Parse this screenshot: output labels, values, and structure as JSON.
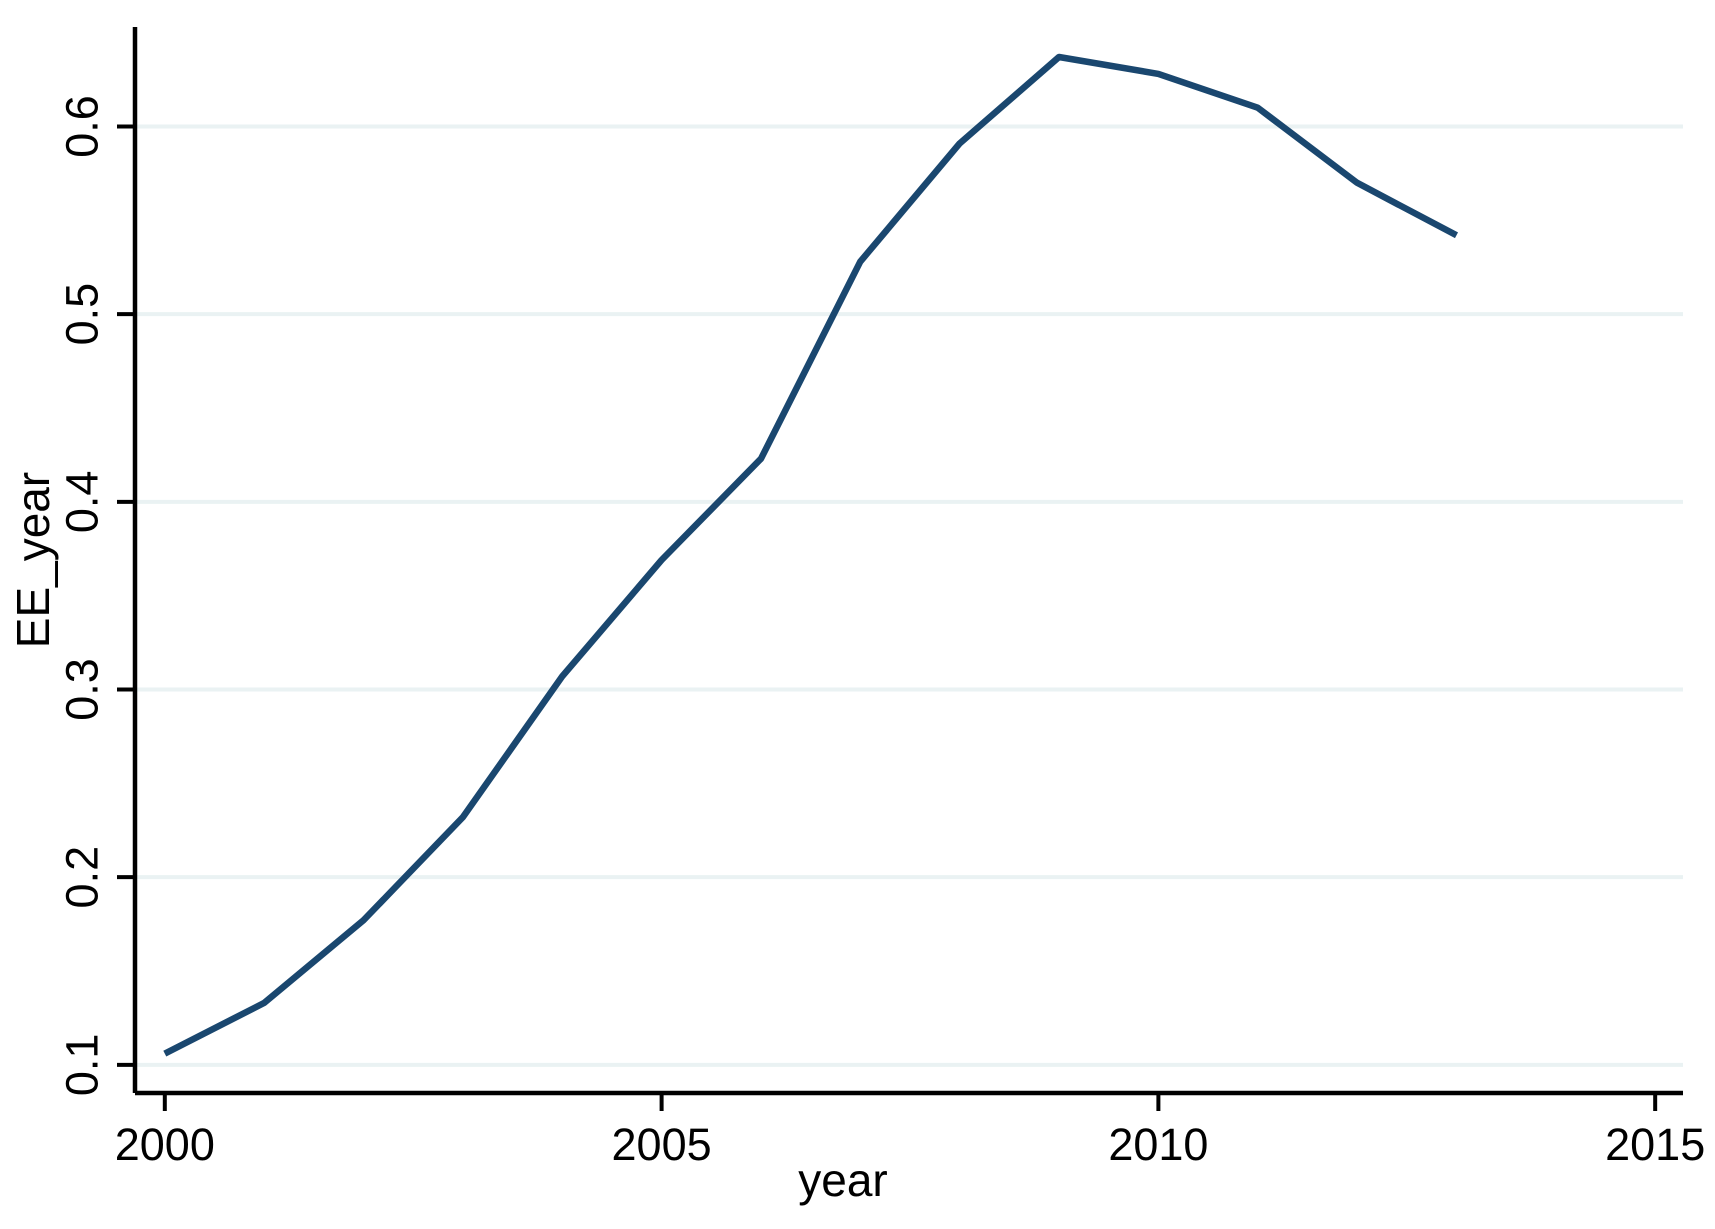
{
  "chart_data": {
    "type": "line",
    "title": "",
    "xlabel": "year",
    "ylabel": "EE_year",
    "x": [
      2000,
      2001,
      2002,
      2003,
      2004,
      2005,
      2006,
      2007,
      2008,
      2009,
      2010,
      2011,
      2012,
      2013
    ],
    "series": [
      {
        "name": "EE_year",
        "values": [
          0.106,
          0.133,
          0.177,
          0.232,
          0.307,
          0.369,
          0.423,
          0.528,
          0.591,
          0.637,
          0.628,
          0.61,
          0.57,
          0.542
        ],
        "color": "#1a476f"
      }
    ],
    "x_ticks": [
      2000,
      2005,
      2010,
      2015
    ],
    "x_tick_labels": [
      "2000",
      "2005",
      "2010",
      "2015"
    ],
    "y_ticks": [
      0.1,
      0.2,
      0.3,
      0.4,
      0.5,
      0.6
    ],
    "y_tick_labels": [
      "0.1",
      "0.2",
      "0.3",
      "0.4",
      "0.5",
      "0.6"
    ],
    "xlim": [
      1999.7,
      2015.28
    ],
    "ylim": [
      0.085,
      0.653
    ],
    "grid": "horizontal-only",
    "legend": "none",
    "gridline_color": "#eaf2f3",
    "axis_color": "#000000",
    "background_color": "#ffffff"
  }
}
